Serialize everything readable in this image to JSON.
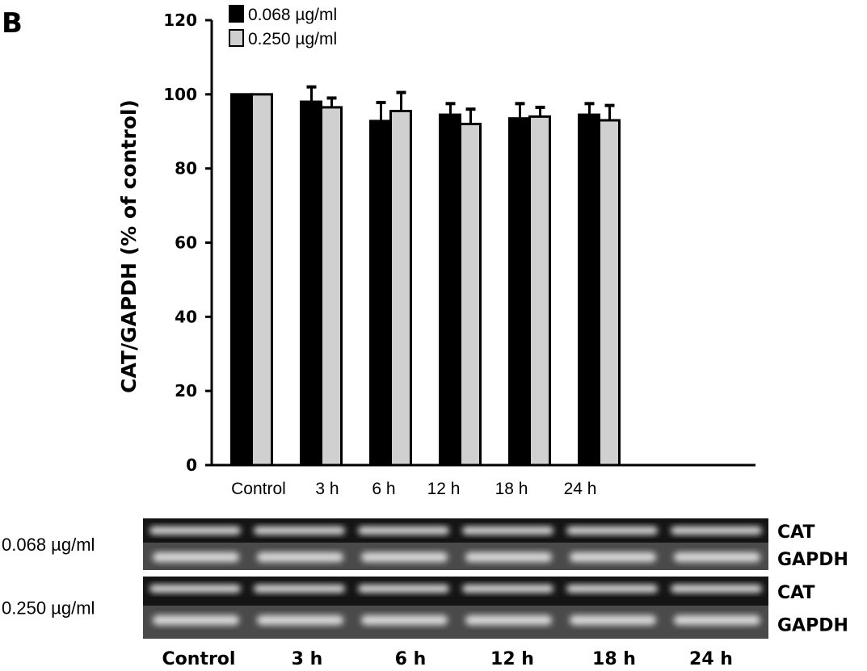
{
  "panel_label": "B",
  "chart_data": {
    "type": "bar",
    "title": "",
    "xlabel": "",
    "ylabel": "CAT/GAPDH (% of control)",
    "ylim": [
      0,
      120
    ],
    "yticks": [
      0,
      20,
      40,
      60,
      80,
      100,
      120
    ],
    "grid": false,
    "legend_position": "top-left",
    "categories": [
      "Control",
      "3 h",
      "6 h",
      "12 h",
      "18 h",
      "24 h"
    ],
    "series": [
      {
        "name": "0.068 µg/ml",
        "color": "#000000",
        "values": [
          100,
          98,
          92.8,
          94.5,
          93.5,
          94.5
        ],
        "errors": [
          0,
          4,
          5,
          3,
          4,
          3
        ]
      },
      {
        "name": "0.250 µg/ml",
        "color": "#d0d0d0",
        "values": [
          100,
          96.5,
          95.5,
          92,
          94,
          93
        ],
        "errors": [
          0,
          2.5,
          5,
          4,
          2.5,
          4
        ]
      }
    ]
  },
  "blot": {
    "rows": [
      {
        "label": "0.068 µg/ml",
        "bands": [
          "CAT",
          "GAPDH"
        ]
      },
      {
        "label": "0.250 µg/ml",
        "bands": [
          "CAT",
          "GAPDH"
        ]
      }
    ],
    "lanes": [
      "Control",
      "3 h",
      "6 h",
      "12 h",
      "18 h",
      "24 h"
    ]
  }
}
